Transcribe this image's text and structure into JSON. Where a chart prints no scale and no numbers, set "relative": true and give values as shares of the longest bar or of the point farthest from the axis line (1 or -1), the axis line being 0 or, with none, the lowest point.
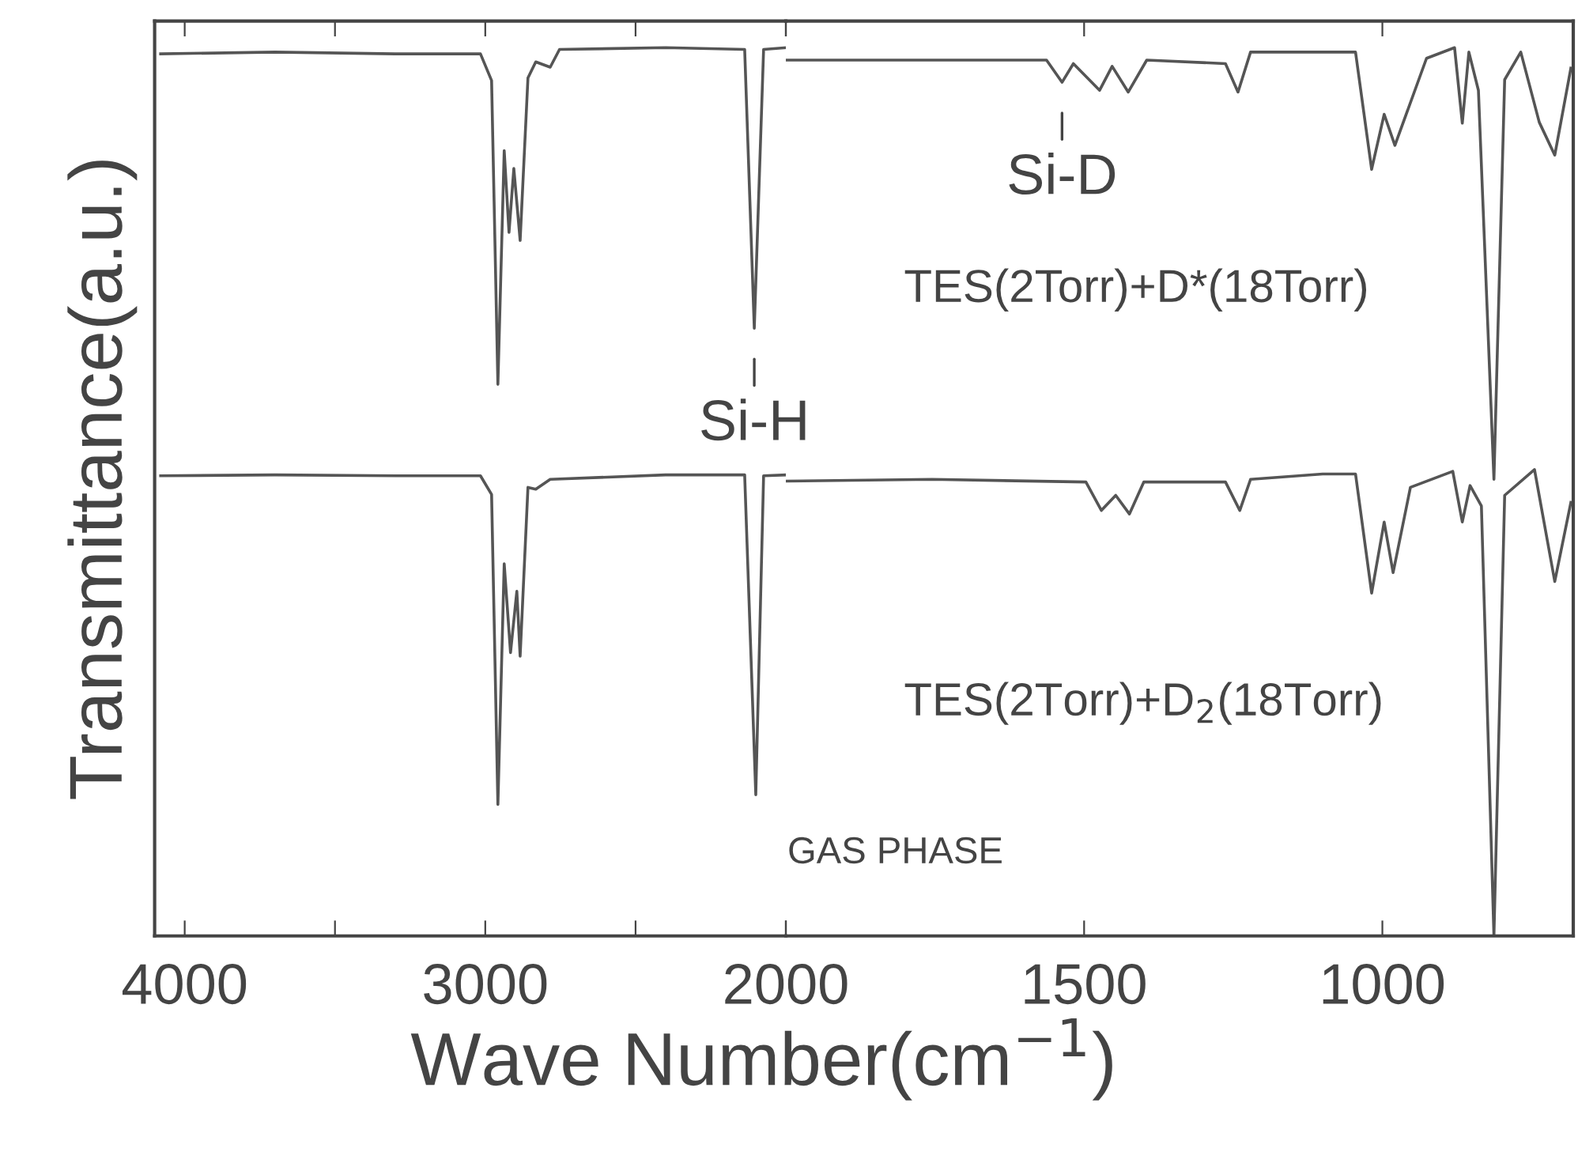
{
  "chart_data": [
    {
      "type": "line",
      "relative": true,
      "xlabel": "Wave Number(cm$^{−1}$)",
      "ylabel": "Transmittance(a.u.)",
      "xlim": [
        4100,
        2000
      ],
      "xticks": [
        4000,
        {
          "value": 3500,
          "label": null
        },
        3000,
        {
          "value": 2500,
          "label": null
        },
        2000
      ],
      "tick_labels": "x",
      "marker": "none",
      "line_style": "solid",
      "grid": false,
      "legend": false,
      "series": [
        {
          "color": "#555555",
          "x": [
            4080,
            3700,
            3300,
            3016,
            2979,
            2958,
            2937,
            2921,
            2905,
            2884,
            2858,
            2832,
            2784,
            2753,
            2400,
            2137,
            2105,
            2074,
            2000
          ],
          "values": [
            0.993,
            0.995,
            0.993,
            0.993,
            0.963,
            0.621,
            0.884,
            0.792,
            0.864,
            0.783,
            0.966,
            0.984,
            0.978,
            0.998,
            1.0,
            0.998,
            0.684,
            0.998,
            1.0
          ]
        },
        {
          "color": "#555555",
          "x": [
            4080,
            3700,
            3300,
            3016,
            2979,
            2958,
            2937,
            2916,
            2895,
            2884,
            2858,
            2832,
            2784,
            2400,
            2137,
            2100,
            2074,
            2000
          ],
          "values": [
            0.518,
            0.519,
            0.518,
            0.518,
            0.497,
            0.148,
            0.419,
            0.319,
            0.388,
            0.315,
            0.505,
            0.503,
            0.514,
            0.519,
            0.519,
            0.159,
            0.518,
            0.519
          ]
        }
      ],
      "annotations": [
        {
          "text": "Si-H",
          "x": 2105,
          "y": 0.684
        }
      ]
    },
    {
      "type": "line",
      "relative": true,
      "xlim": [
        2000,
        680
      ],
      "xticks": [
        {
          "value": 2000,
          "label": null
        },
        1500,
        1000
      ],
      "tick_labels": "x",
      "marker": "none",
      "line_style": "solid",
      "grid": false,
      "legend": false,
      "series": [
        {
          "color": "#555555",
          "x": [
            2000,
            1782,
            1563,
            1537,
            1518,
            1474,
            1453,
            1426,
            1395,
            1263,
            1242,
            1221,
            1045,
            1018,
            997,
            979,
            926,
            879,
            866,
            855,
            839,
            813,
            795,
            768,
            737,
            711,
            684
          ],
          "values": [
            0.986,
            0.986,
            0.986,
            0.961,
            0.982,
            0.952,
            0.979,
            0.95,
            0.986,
            0.982,
            0.95,
            0.995,
            0.995,
            0.863,
            0.925,
            0.89,
            0.988,
            1.0,
            0.915,
            0.995,
            0.952,
            0.514,
            0.964,
            0.995,
            0.916,
            0.879,
            0.977
          ]
        },
        {
          "color": "#555555",
          "x": [
            2000,
            1755,
            1497,
            1471,
            1447,
            1424,
            1400,
            1263,
            1239,
            1221,
            1100,
            1045,
            1018,
            997,
            982,
            953,
            882,
            866,
            853,
            834,
            813,
            795,
            745,
            711,
            684
          ],
          "values": [
            0.512,
            0.514,
            0.511,
            0.479,
            0.496,
            0.475,
            0.511,
            0.511,
            0.479,
            0.514,
            0.52,
            0.52,
            0.386,
            0.466,
            0.409,
            0.505,
            0.523,
            0.466,
            0.507,
            0.484,
            0.0,
            0.496,
            0.525,
            0.399,
            0.488
          ]
        }
      ],
      "annotations": [
        {
          "text": "Si-D",
          "x": 1537,
          "y": 0.961
        },
        "TES(2Torr)+D*(18Torr)",
        "TES(2Torr)+D$_{2}$(18Torr)",
        "GAS PHASE"
      ]
    }
  ]
}
